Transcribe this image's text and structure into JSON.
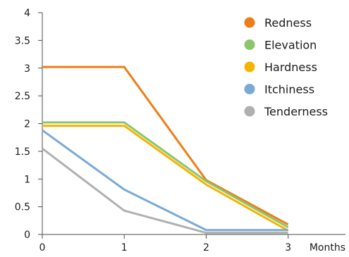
{
  "chart_data": {
    "type": "line",
    "title": "",
    "xlabel": "Months",
    "ylabel": "",
    "x": [
      0,
      1,
      2,
      3
    ],
    "x_ticks": [
      "0",
      "1",
      "2",
      "3"
    ],
    "y_ticks": [
      "0",
      "0.5",
      "1",
      "1.5",
      "2",
      "2.5",
      "3",
      "3.5",
      "4"
    ],
    "xlim": [
      0,
      3.7
    ],
    "ylim": [
      0,
      4
    ],
    "grid": false,
    "legend_position": "top-right",
    "series": [
      {
        "name": "Redness",
        "color": "#ef7d16",
        "values": [
          3.02,
          3.02,
          0.98,
          0.18
        ]
      },
      {
        "name": "Elevation",
        "color": "#8cc56a",
        "values": [
          2.02,
          2.02,
          0.96,
          0.13
        ]
      },
      {
        "name": "Hardness",
        "color": "#f5b400",
        "values": [
          1.96,
          1.96,
          0.9,
          0.07
        ]
      },
      {
        "name": "Itchiness",
        "color": "#7aaad4",
        "values": [
          1.88,
          0.81,
          0.08,
          0.08
        ]
      },
      {
        "name": "Tenderness",
        "color": "#aeb1af",
        "values": [
          1.55,
          0.43,
          0.03,
          0.03
        ]
      }
    ]
  }
}
